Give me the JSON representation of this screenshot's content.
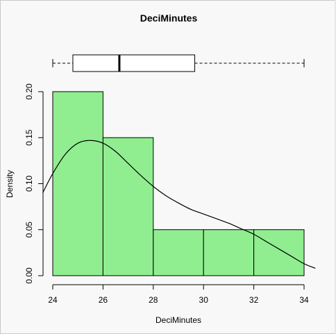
{
  "chart_data": {
    "type": "bar",
    "subtype": "histogram with density curve and boxplot",
    "title": "DeciMinutes",
    "xlabel": "DeciMinutes",
    "ylabel": "Density",
    "xlim": [
      24,
      34
    ],
    "ylim": [
      0,
      0.2
    ],
    "x_ticks": [
      "24",
      "26",
      "28",
      "30",
      "32",
      "34"
    ],
    "y_ticks": [
      "0.00",
      "0.05",
      "0.10",
      "0.15",
      "0.20"
    ],
    "bins": [
      {
        "from": 24,
        "to": 26,
        "density": 0.2
      },
      {
        "from": 26,
        "to": 28,
        "density": 0.15
      },
      {
        "from": 28,
        "to": 30,
        "density": 0.05
      },
      {
        "from": 30,
        "to": 32,
        "density": 0.05
      },
      {
        "from": 32,
        "to": 34,
        "density": 0.05
      }
    ],
    "density_curve": {
      "x": [
        23.6,
        24.0,
        24.5,
        25.0,
        25.5,
        26.0,
        26.5,
        27.0,
        27.5,
        28.0,
        28.5,
        29.0,
        29.5,
        30.0,
        30.5,
        31.0,
        31.5,
        32.0,
        32.5,
        33.0,
        33.5,
        34.0,
        34.45
      ],
      "y": [
        0.09,
        0.111,
        0.132,
        0.144,
        0.147,
        0.144,
        0.135,
        0.122,
        0.109,
        0.097,
        0.087,
        0.079,
        0.072,
        0.067,
        0.062,
        0.057,
        0.051,
        0.045,
        0.037,
        0.029,
        0.021,
        0.013,
        0.008
      ]
    },
    "boxplot": {
      "min": 24.0,
      "q1": 24.8,
      "median": 26.65,
      "q3": 29.65,
      "max": 34.0
    },
    "colors": {
      "bar_fill": "#90ee90",
      "bar_stroke": "#000000",
      "curve": "#000000",
      "background": "#f8f8f8"
    },
    "grid": false,
    "legend": "none"
  }
}
